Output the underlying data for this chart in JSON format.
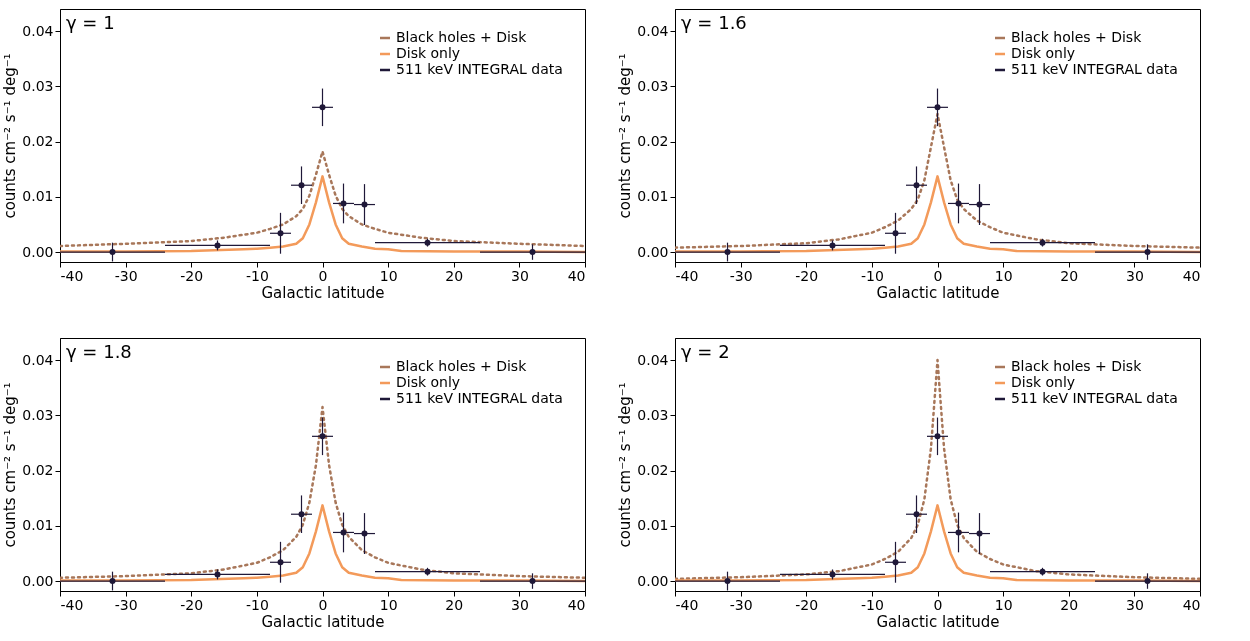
{
  "chart_data": [
    {
      "type": "line",
      "annotations": [
        "γ = 1"
      ],
      "xlabel": "Galactic latitude",
      "ylabel": "counts cm⁻² s⁻¹ deg⁻¹",
      "xlim": [
        -40,
        40
      ],
      "xticks": [
        -40,
        -30,
        -20,
        -10,
        0,
        10,
        20,
        30,
        40
      ],
      "ylim": [
        -0.0018,
        0.044
      ],
      "yticks": [
        {
          "value": 0,
          "label": "0.00"
        },
        {
          "value": 0.01,
          "label": "0.01"
        },
        {
          "value": 0.02,
          "label": "0.02"
        },
        {
          "value": 0.03,
          "label": "0.03"
        },
        {
          "value": 0.04,
          "label": "0.04"
        }
      ],
      "grid": false,
      "legend": "top right",
      "series": [
        {
          "name": "Black holes + Disk",
          "color": "#a8775a",
          "line_style": "dotted",
          "x": [
            -40,
            -30,
            -20,
            -15,
            -10,
            -8,
            -6,
            -4,
            -3,
            -2,
            -1,
            0,
            1,
            2,
            3,
            4,
            6,
            8,
            10,
            15,
            20,
            30,
            40
          ],
          "values": [
            0.0011,
            0.0015,
            0.002,
            0.0026,
            0.0035,
            0.0042,
            0.005,
            0.0065,
            0.0078,
            0.0102,
            0.014,
            0.0182,
            0.014,
            0.0102,
            0.0078,
            0.0065,
            0.005,
            0.0042,
            0.0035,
            0.0026,
            0.002,
            0.0015,
            0.0011
          ]
        },
        {
          "name": "Disk only",
          "color": "#f39a5a",
          "line_style": "solid",
          "x": [
            -40,
            -30,
            -20,
            -12,
            -10,
            -8,
            -6,
            -4,
            -3,
            -2,
            -1,
            0,
            1,
            2,
            3,
            4,
            6,
            8,
            10,
            12,
            20,
            30,
            40
          ],
          "values": [
            0.0001,
            0.0001,
            0.0002,
            0.0005,
            0.0006,
            0.0008,
            0.001,
            0.0015,
            0.0025,
            0.005,
            0.009,
            0.0137,
            0.009,
            0.005,
            0.0025,
            0.0015,
            0.001,
            0.0006,
            0.0005,
            0.0002,
            0.0001,
            0.0001,
            0
          ]
        },
        {
          "name": "511 keV INTEGRAL data",
          "type": "scatter",
          "color": "#1f1838",
          "marker": "circle",
          "x": [
            -32,
            -16,
            -6.4,
            -3.2,
            0,
            3.2,
            6.4,
            16,
            32
          ],
          "values": [
            0,
            0.0012,
            0.0034,
            0.0121,
            0.0262,
            0.0088,
            0.0086,
            0.0017,
            0
          ],
          "errors": [
            0.0017,
            0.0009,
            0.0037,
            0.0034,
            0.0034,
            0.0036,
            0.0037,
            0.0007,
            0.0014
          ],
          "xerrors": [
            8,
            8,
            1.6,
            1.6,
            1.6,
            1.6,
            1.6,
            8,
            8
          ]
        }
      ]
    },
    {
      "type": "line",
      "annotations": [
        "γ = 1.6"
      ],
      "xlabel": "Galactic latitude",
      "ylabel": "counts cm⁻² s⁻¹ deg⁻¹",
      "xlim": [
        -40,
        40
      ],
      "xticks": [
        -40,
        -30,
        -20,
        -10,
        0,
        10,
        20,
        30,
        40
      ],
      "ylim": [
        -0.0018,
        0.044
      ],
      "yticks": [
        {
          "value": 0,
          "label": "0.00"
        },
        {
          "value": 0.01,
          "label": "0.01"
        },
        {
          "value": 0.02,
          "label": "0.02"
        },
        {
          "value": 0.03,
          "label": "0.03"
        },
        {
          "value": 0.04,
          "label": "0.04"
        }
      ],
      "grid": false,
      "legend": "top right",
      "series": [
        {
          "name": "Black holes + Disk",
          "color": "#a8775a",
          "line_style": "dotted",
          "x": [
            -40,
            -30,
            -20,
            -15,
            -10,
            -8,
            -6,
            -4,
            -3,
            -2,
            -1,
            0,
            1,
            2,
            3,
            4,
            6,
            8,
            10,
            15,
            20,
            30,
            40
          ],
          "values": [
            0.0008,
            0.0011,
            0.0016,
            0.0023,
            0.0035,
            0.0045,
            0.0057,
            0.0078,
            0.0095,
            0.013,
            0.019,
            0.025,
            0.019,
            0.013,
            0.0095,
            0.0078,
            0.0057,
            0.0045,
            0.0035,
            0.0023,
            0.0016,
            0.0011,
            0.0008
          ]
        },
        {
          "name": "Disk only",
          "color": "#f39a5a",
          "line_style": "solid",
          "x": [
            -40,
            -30,
            -20,
            -12,
            -10,
            -8,
            -6,
            -4,
            -3,
            -2,
            -1,
            0,
            1,
            2,
            3,
            4,
            6,
            8,
            10,
            12,
            20,
            30,
            40
          ],
          "values": [
            0.0001,
            0.0001,
            0.0002,
            0.0005,
            0.0006,
            0.0008,
            0.001,
            0.0015,
            0.0025,
            0.005,
            0.009,
            0.0137,
            0.009,
            0.005,
            0.0025,
            0.0015,
            0.001,
            0.0006,
            0.0005,
            0.0002,
            0.0001,
            0.0001,
            0
          ]
        },
        {
          "name": "511 keV INTEGRAL data",
          "type": "scatter",
          "color": "#1f1838",
          "marker": "circle",
          "x": [
            -32,
            -16,
            -6.4,
            -3.2,
            0,
            3.2,
            6.4,
            16,
            32
          ],
          "values": [
            0,
            0.0012,
            0.0034,
            0.0121,
            0.0262,
            0.0088,
            0.0086,
            0.0017,
            0
          ],
          "errors": [
            0.0017,
            0.0009,
            0.0037,
            0.0034,
            0.0034,
            0.0036,
            0.0037,
            0.0007,
            0.0014
          ],
          "xerrors": [
            8,
            8,
            1.6,
            1.6,
            1.6,
            1.6,
            1.6,
            8,
            8
          ]
        }
      ]
    },
    {
      "type": "line",
      "annotations": [
        "γ = 1.8"
      ],
      "xlabel": "Galactic latitude",
      "ylabel": "counts cm⁻² s⁻¹ deg⁻¹",
      "xlim": [
        -40,
        40
      ],
      "xticks": [
        -40,
        -30,
        -20,
        -10,
        0,
        10,
        20,
        30,
        40
      ],
      "ylim": [
        -0.0018,
        0.044
      ],
      "yticks": [
        {
          "value": 0,
          "label": "0.00"
        },
        {
          "value": 0.01,
          "label": "0.01"
        },
        {
          "value": 0.02,
          "label": "0.02"
        },
        {
          "value": 0.03,
          "label": "0.03"
        },
        {
          "value": 0.04,
          "label": "0.04"
        }
      ],
      "grid": false,
      "legend": "top right",
      "series": [
        {
          "name": "Black holes + Disk",
          "color": "#a8775a",
          "line_style": "dotted",
          "x": [
            -40,
            -30,
            -20,
            -15,
            -10,
            -8,
            -6,
            -4,
            -3,
            -2,
            -1,
            0,
            1,
            2,
            3,
            4,
            6,
            8,
            10,
            15,
            20,
            30,
            40
          ],
          "values": [
            0.0006,
            0.0009,
            0.0014,
            0.0021,
            0.0033,
            0.0043,
            0.0056,
            0.008,
            0.0102,
            0.0142,
            0.021,
            0.0315,
            0.021,
            0.0142,
            0.0102,
            0.008,
            0.0056,
            0.0043,
            0.0033,
            0.0021,
            0.0014,
            0.0009,
            0.0006
          ]
        },
        {
          "name": "Disk only",
          "color": "#f39a5a",
          "line_style": "solid",
          "x": [
            -40,
            -30,
            -20,
            -12,
            -10,
            -8,
            -6,
            -4,
            -3,
            -2,
            -1,
            0,
            1,
            2,
            3,
            4,
            6,
            8,
            10,
            12,
            20,
            30,
            40
          ],
          "values": [
            0.0001,
            0.0001,
            0.0002,
            0.0005,
            0.0006,
            0.0008,
            0.001,
            0.0015,
            0.0025,
            0.005,
            0.009,
            0.0137,
            0.009,
            0.005,
            0.0025,
            0.0015,
            0.001,
            0.0006,
            0.0005,
            0.0002,
            0.0001,
            0.0001,
            0
          ]
        },
        {
          "name": "511 keV INTEGRAL data",
          "type": "scatter",
          "color": "#1f1838",
          "marker": "circle",
          "x": [
            -32,
            -16,
            -6.4,
            -3.2,
            0,
            3.2,
            6.4,
            16,
            32
          ],
          "values": [
            0,
            0.0012,
            0.0034,
            0.0121,
            0.0262,
            0.0088,
            0.0086,
            0.0017,
            0
          ],
          "errors": [
            0.0017,
            0.0009,
            0.0037,
            0.0034,
            0.0034,
            0.0036,
            0.0037,
            0.0007,
            0.0014
          ],
          "xerrors": [
            8,
            8,
            1.6,
            1.6,
            1.6,
            1.6,
            1.6,
            8,
            8
          ]
        }
      ]
    },
    {
      "type": "line",
      "annotations": [
        "γ = 2"
      ],
      "xlabel": "Galactic latitude",
      "ylabel": "counts cm⁻² s⁻¹ deg⁻¹",
      "xlim": [
        -40,
        40
      ],
      "xticks": [
        -40,
        -30,
        -20,
        -10,
        0,
        10,
        20,
        30,
        40
      ],
      "ylim": [
        -0.0018,
        0.044
      ],
      "yticks": [
        {
          "value": 0,
          "label": "0.00"
        },
        {
          "value": 0.01,
          "label": "0.01"
        },
        {
          "value": 0.02,
          "label": "0.02"
        },
        {
          "value": 0.03,
          "label": "0.03"
        },
        {
          "value": 0.04,
          "label": "0.04"
        }
      ],
      "grid": false,
      "legend": "top right",
      "series": [
        {
          "name": "Black holes + Disk",
          "color": "#a8775a",
          "line_style": "dotted",
          "x": [
            -40,
            -30,
            -20,
            -15,
            -10,
            -8,
            -6,
            -4,
            -3,
            -2,
            -1,
            0,
            1,
            2,
            3,
            4,
            6,
            8,
            10,
            15,
            20,
            30,
            40
          ],
          "values": [
            0.0004,
            0.0007,
            0.0012,
            0.0018,
            0.003,
            0.004,
            0.0053,
            0.0078,
            0.0102,
            0.0148,
            0.024,
            0.04,
            0.024,
            0.0148,
            0.0102,
            0.0078,
            0.0053,
            0.004,
            0.003,
            0.0018,
            0.0012,
            0.0007,
            0.0004
          ]
        },
        {
          "name": "Disk only",
          "color": "#f39a5a",
          "line_style": "solid",
          "x": [
            -40,
            -30,
            -20,
            -12,
            -10,
            -8,
            -6,
            -4,
            -3,
            -2,
            -1,
            0,
            1,
            2,
            3,
            4,
            6,
            8,
            10,
            12,
            20,
            30,
            40
          ],
          "values": [
            0.0001,
            0.0001,
            0.0002,
            0.0005,
            0.0006,
            0.0008,
            0.001,
            0.0015,
            0.0025,
            0.005,
            0.009,
            0.0137,
            0.009,
            0.005,
            0.0025,
            0.0015,
            0.001,
            0.0006,
            0.0005,
            0.0002,
            0.0001,
            0.0001,
            0
          ]
        },
        {
          "name": "511 keV INTEGRAL data",
          "type": "scatter",
          "color": "#1f1838",
          "marker": "circle",
          "x": [
            -32,
            -16,
            -6.4,
            -3.2,
            0,
            3.2,
            6.4,
            16,
            32
          ],
          "values": [
            0,
            0.0012,
            0.0034,
            0.0121,
            0.0262,
            0.0088,
            0.0086,
            0.0017,
            0
          ],
          "errors": [
            0.0017,
            0.0009,
            0.0037,
            0.0034,
            0.0034,
            0.0036,
            0.0037,
            0.0007,
            0.0014
          ],
          "xerrors": [
            8,
            8,
            1.6,
            1.6,
            1.6,
            1.6,
            1.6,
            8,
            8
          ]
        }
      ]
    }
  ]
}
